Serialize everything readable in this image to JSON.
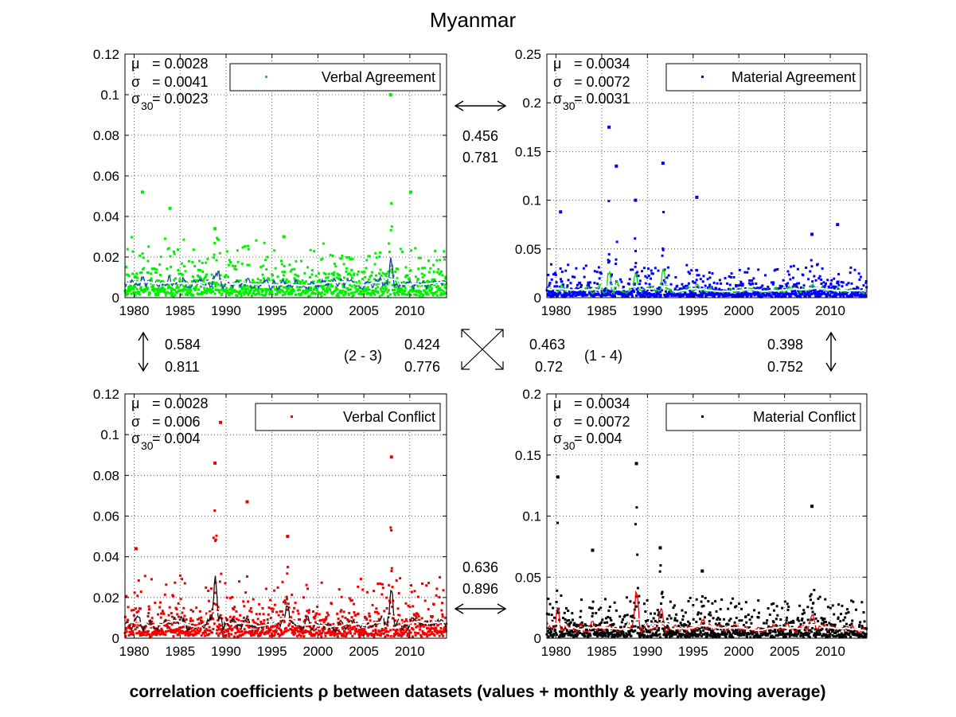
{
  "figure": {
    "title": "Myanmar",
    "footer": "correlation coefficients ρ between datasets (values + monthly & yearly moving average)"
  },
  "chart_data": [
    {
      "type": "scatter",
      "id": "p1",
      "legend": "Verbal Agreement",
      "legend_placement": "top-right",
      "color": "#00ee00",
      "avg_color": "#2233cc",
      "yearly_color": "#ffffff",
      "stats": {
        "mu_label": "μ",
        "mu": "= 0.0028",
        "sigma_label": "σ",
        "sigma": "= 0.0041",
        "sigma30_label": "σ",
        "sigma30_sub": "30",
        "sigma30": "= 0.0023"
      },
      "xlim": [
        1979,
        2014
      ],
      "ylim": [
        0,
        0.12
      ],
      "xticks": [
        1980,
        1985,
        1990,
        1995,
        2000,
        2005,
        2010
      ],
      "yticks": [
        0,
        0.02,
        0.04,
        0.06,
        0.08,
        0.1,
        0.12
      ],
      "yticklabels": [
        "0",
        "0.02",
        "0.04",
        "0.06",
        "0.08",
        "0.1",
        "0.12"
      ],
      "grid": true,
      "base": 0.007,
      "noise": 0.022,
      "spikes": [
        {
          "x": 1988.8,
          "y": 0.034,
          "w": 0.25
        },
        {
          "x": 1996.3,
          "y": 0.03,
          "w": 0.4
        },
        {
          "x": 2007.9,
          "y": 0.1,
          "w": 0.15
        },
        {
          "x": 1980.9,
          "y": 0.052,
          "w": 0.05
        },
        {
          "x": 2010.1,
          "y": 0.052,
          "w": 0.05
        },
        {
          "x": 1983.9,
          "y": 0.044,
          "w": 0.05
        }
      ]
    },
    {
      "type": "scatter",
      "id": "p2",
      "legend": "Material Agreement",
      "legend_placement": "top-right",
      "color": "#0000ff",
      "avg_color": "#00dd00",
      "yearly_color": "#ffffff",
      "stats": {
        "mu_label": "μ",
        "mu": "= 0.0034",
        "sigma_label": "σ",
        "sigma": "= 0.0072",
        "sigma30_label": "σ",
        "sigma30_sub": "30",
        "sigma30": "= 0.0031"
      },
      "xlim": [
        1979,
        2014
      ],
      "ylim": [
        0,
        0.25
      ],
      "xticks": [
        1980,
        1985,
        1990,
        1995,
        2000,
        2005,
        2010
      ],
      "yticks": [
        0,
        0.05,
        0.1,
        0.15,
        0.2,
        0.25
      ],
      "yticklabels": [
        "0",
        "0.05",
        "0.1",
        "0.15",
        "0.2",
        "0.25"
      ],
      "grid": true,
      "base": 0.006,
      "noise": 0.03,
      "spikes": [
        {
          "x": 1985.8,
          "y": 0.175,
          "w": 0.05
        },
        {
          "x": 1986.6,
          "y": 0.135,
          "w": 0.05
        },
        {
          "x": 1991.7,
          "y": 0.138,
          "w": 0.1
        },
        {
          "x": 1988.7,
          "y": 0.1,
          "w": 0.2
        },
        {
          "x": 1995.4,
          "y": 0.103,
          "w": 0.05
        },
        {
          "x": 2008.0,
          "y": 0.065,
          "w": 0.2
        },
        {
          "x": 1980.5,
          "y": 0.088,
          "w": 0.05
        },
        {
          "x": 2010.8,
          "y": 0.075,
          "w": 0.05
        }
      ]
    },
    {
      "type": "scatter",
      "id": "p3",
      "legend": "Verbal Conflict",
      "legend_placement": "top-right",
      "color": "#ee0000",
      "avg_color": "#111111",
      "yearly_color": "#ffffff",
      "stats": {
        "mu_label": "μ",
        "mu": "= 0.0028",
        "sigma_label": "σ",
        "sigma": "= 0.006",
        "sigma30_label": "σ",
        "sigma30_sub": "30",
        "sigma30": "= 0.004"
      },
      "xlim": [
        1979,
        2014
      ],
      "ylim": [
        0,
        0.12
      ],
      "xticks": [
        1980,
        1985,
        1990,
        1995,
        2000,
        2005,
        2010
      ],
      "yticks": [
        0,
        0.02,
        0.04,
        0.06,
        0.08,
        0.1,
        0.12
      ],
      "yticklabels": [
        "0",
        "0.02",
        "0.04",
        "0.06",
        "0.08",
        "0.1",
        "0.12"
      ],
      "grid": true,
      "base": 0.006,
      "noise": 0.025,
      "spikes": [
        {
          "x": 1988.8,
          "y": 0.086,
          "w": 0.25
        },
        {
          "x": 1989.4,
          "y": 0.106,
          "w": 0.05
        },
        {
          "x": 1996.7,
          "y": 0.05,
          "w": 0.5
        },
        {
          "x": 2008.0,
          "y": 0.089,
          "w": 0.2
        },
        {
          "x": 1992.3,
          "y": 0.067,
          "w": 0.05
        },
        {
          "x": 1980.2,
          "y": 0.044,
          "w": 0.1
        }
      ]
    },
    {
      "type": "scatter",
      "id": "p4",
      "legend": "Material Conflict",
      "legend_placement": "top-right",
      "color": "#000000",
      "avg_color": "#ee0000",
      "yearly_color": "#ffffff",
      "stats": {
        "mu_label": "μ",
        "mu": "= 0.0034",
        "sigma_label": "σ",
        "sigma": "= 0.0072",
        "sigma30_label": "σ",
        "sigma30_sub": "30",
        "sigma30": "= 0.004"
      },
      "xlim": [
        1979,
        2014
      ],
      "ylim": [
        0,
        0.2
      ],
      "xticks": [
        1980,
        1985,
        1990,
        1995,
        2000,
        2005,
        2010
      ],
      "yticks": [
        0,
        0.05,
        0.1,
        0.15,
        0.2
      ],
      "yticklabels": [
        "0",
        "0.05",
        "0.1",
        "0.15",
        "0.2"
      ],
      "grid": true,
      "base": 0.006,
      "noise": 0.03,
      "spikes": [
        {
          "x": 1980.2,
          "y": 0.132,
          "w": 0.05
        },
        {
          "x": 1988.8,
          "y": 0.143,
          "w": 0.3
        },
        {
          "x": 1984.0,
          "y": 0.072,
          "w": 0.15
        },
        {
          "x": 1991.4,
          "y": 0.074,
          "w": 0.3
        },
        {
          "x": 2008.0,
          "y": 0.108,
          "w": 0.2
        },
        {
          "x": 1996.0,
          "y": 0.055,
          "w": 0.4
        }
      ]
    }
  ],
  "correlations": {
    "top": {
      "values": "0.456",
      "averaged": "0.781"
    },
    "bottom": {
      "values": "0.636",
      "averaged": "0.896"
    },
    "left": {
      "values": "0.584",
      "averaged": "0.811"
    },
    "right": {
      "values": "0.398",
      "averaged": "0.752"
    },
    "diag_23": {
      "label": "(2 - 3)",
      "values": "0.424",
      "averaged": "0.776"
    },
    "diag_14": {
      "label": "(1 - 4)",
      "values": "0.463",
      "averaged": "0.72"
    }
  }
}
